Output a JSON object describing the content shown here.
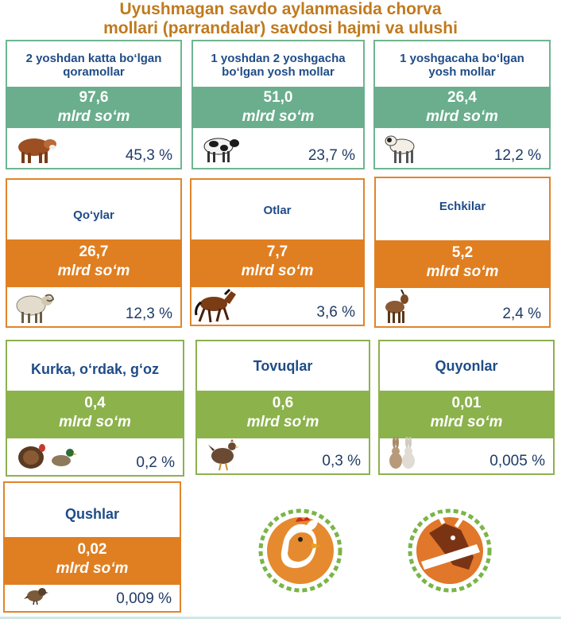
{
  "title": {
    "line1": "Uyushmagan savdo aylanmasida chorva",
    "line2": "mollari (parrandalar) savdosi hajmi va ulushi"
  },
  "cards": [
    {
      "label_line1": "2 yoshdan katta bo‘lgan",
      "label_line2": "qoramollar",
      "value": "97,6",
      "unit": "mlrd so‘m",
      "percent": "45,3 %",
      "icon": "bull-icon"
    },
    {
      "label_line1": "1 yoshdan 2 yoshgacha",
      "label_line2": "bo‘lgan yosh mollar",
      "value": "51,0",
      "unit": "mlrd so‘m",
      "percent": "23,7 %",
      "icon": "cow-icon"
    },
    {
      "label_line1": "1 yoshgacaha bo‘lgan",
      "label_line2": "yosh mollar",
      "value": "26,4",
      "unit": "mlrd so‘m",
      "percent": "12,2 %",
      "icon": "calf-icon"
    },
    {
      "label_line1": "Qo‘ylar",
      "label_line2": "",
      "value": "26,7",
      "unit": "mlrd so‘m",
      "percent": "12,3 %",
      "icon": "sheep-icon"
    },
    {
      "label_line1": "Otlar",
      "label_line2": "",
      "value": "7,7",
      "unit": "mlrd so‘m",
      "percent": "3,6 %",
      "icon": "horse-icon"
    },
    {
      "label_line1": "Echkilar",
      "label_line2": "",
      "value": "5,2",
      "unit": "mlrd so‘m",
      "percent": "2,4 %",
      "icon": "goat-icon"
    },
    {
      "label_line1": "Kurka, o‘rdak, g‘oz",
      "label_line2": "",
      "value": "0,4",
      "unit": "mlrd so‘m",
      "percent": "0,2 %",
      "icon": "turkey-duck-icon"
    },
    {
      "label_line1": "Tovuqlar",
      "label_line2": "",
      "value": "0,6",
      "unit": "mlrd so‘m",
      "percent": "0,3 %",
      "icon": "hen-icon"
    },
    {
      "label_line1": "Quyonlar",
      "label_line2": "",
      "value": "0,01",
      "unit": "mlrd so‘m",
      "percent": "0,005 %",
      "icon": "rabbit-icon"
    },
    {
      "label_line1": "Qushlar",
      "label_line2": "",
      "value": "0,02",
      "unit": "mlrd so‘m",
      "percent": "0,009 %",
      "icon": "sparrow-icon"
    }
  ],
  "colors": {
    "green": "#6aae8d",
    "orange": "#e07f21",
    "lime": "#8cb24c",
    "title": "#c07a1e",
    "label": "#1f4c87"
  },
  "logos": [
    "rooster-logo-icon",
    "bull-logo-icon"
  ]
}
